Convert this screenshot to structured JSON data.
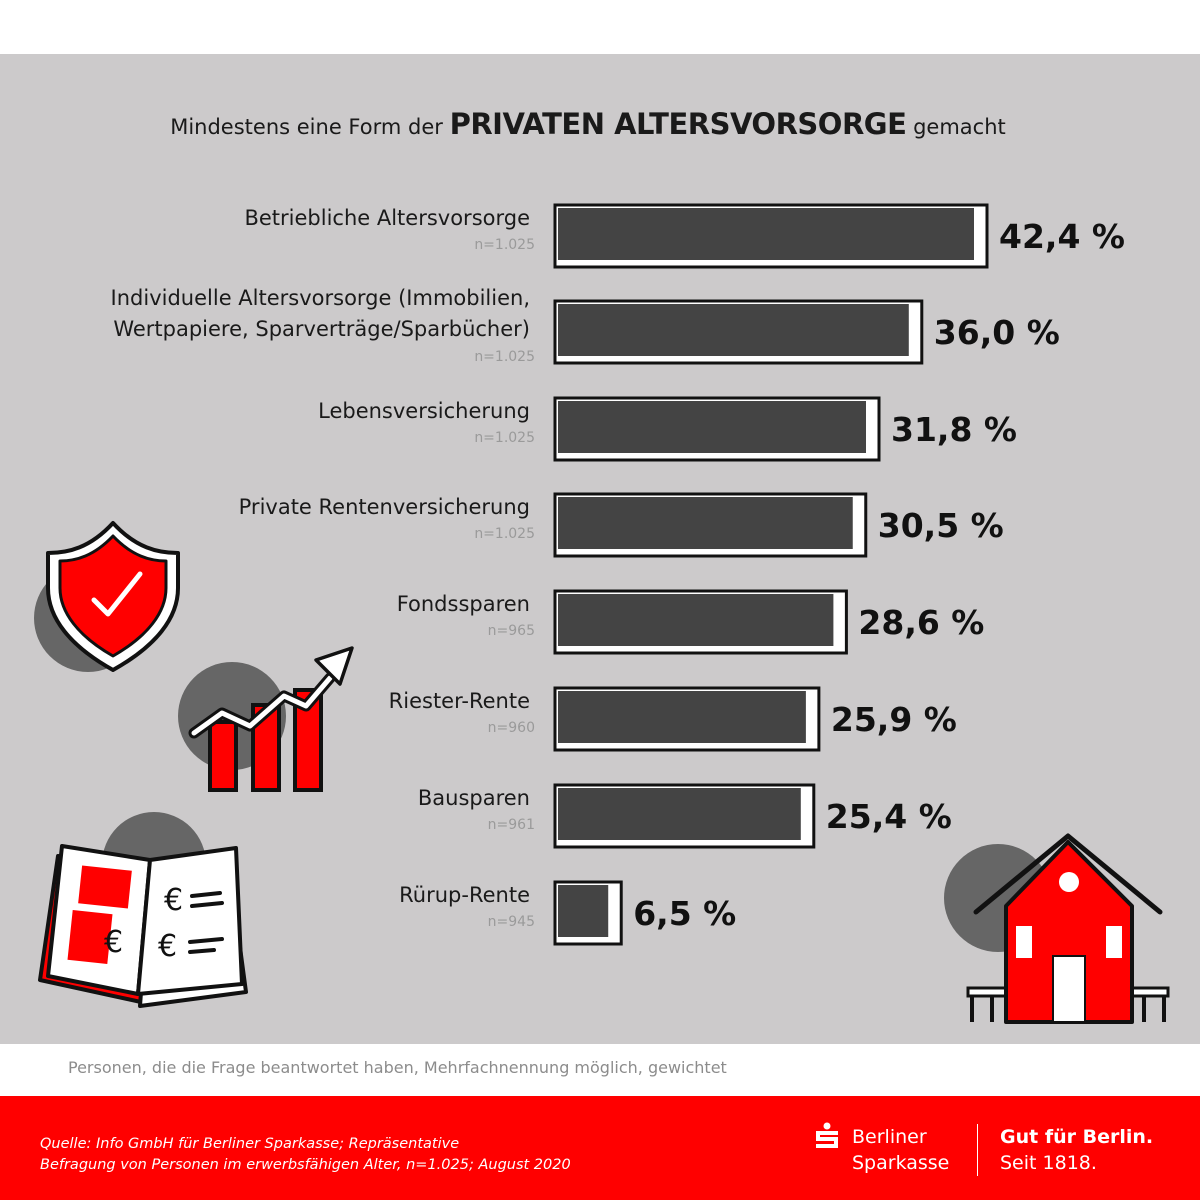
{
  "title": {
    "prefix": "Mindestens eine Form der",
    "highlight": "PRIVATEN ALTERSVORSORGE",
    "suffix": "gemacht"
  },
  "chart_data": {
    "type": "bar",
    "orientation": "horizontal",
    "title": "Mindestens eine Form der PRIVATEN ALTERSVORSORGE gemacht",
    "xlabel": "",
    "ylabel": "",
    "xlim": [
      0,
      42.4
    ],
    "categories": [
      {
        "lines": [
          "Betriebliche Altersvorsorge"
        ],
        "n": "n=1.025",
        "value": 42.4,
        "value_label": "42,4 %"
      },
      {
        "lines": [
          "Individuelle Altersvorsorge (Immobilien,",
          "Wertpapiere, Sparverträge/Sparbücher)"
        ],
        "n": "n=1.025",
        "value": 36.0,
        "value_label": "36,0 %"
      },
      {
        "lines": [
          "Lebensversicherung"
        ],
        "n": "n=1.025",
        "value": 31.8,
        "value_label": "31,8 %"
      },
      {
        "lines": [
          "Private Rentenversicherung"
        ],
        "n": "n=1.025",
        "value": 30.5,
        "value_label": "30,5 %"
      },
      {
        "lines": [
          "Fondssparen"
        ],
        "n": "n=965",
        "value": 28.6,
        "value_label": "28,6 %"
      },
      {
        "lines": [
          "Riester-Rente"
        ],
        "n": "n=960",
        "value": 25.9,
        "value_label": "25,9 %"
      },
      {
        "lines": [
          "Bausparen"
        ],
        "n": "n=961",
        "value": 25.4,
        "value_label": "25,4 %"
      },
      {
        "lines": [
          "Rürup-Rente"
        ],
        "n": "n=945",
        "value": 6.5,
        "value_label": "6,5 %"
      }
    ]
  },
  "colors": {
    "panel": "#cccacb",
    "bar_fill": "#444444",
    "bar_outline": "#111111",
    "accent_red": "#ff0000",
    "icon_circle": "#666666"
  },
  "icons": [
    "shield-check-icon",
    "growth-chart-icon",
    "euro-book-icon",
    "house-icon"
  ],
  "note": "Personen, die die Frage beantwortet haben, Mehrfachnennung möglich, gewichtet",
  "footer": {
    "source_line1": "Quelle: Info GmbH für Berliner Sparkasse; Repräsentative",
    "source_line2": "Befragung von Personen im erwerbsfähigen Alter, n=1.025; August 2020",
    "brand_line1": "Berliner",
    "brand_line2": "Sparkasse",
    "slogan_line1": "Gut für Berlin.",
    "slogan_line2": "Seit 1818."
  }
}
